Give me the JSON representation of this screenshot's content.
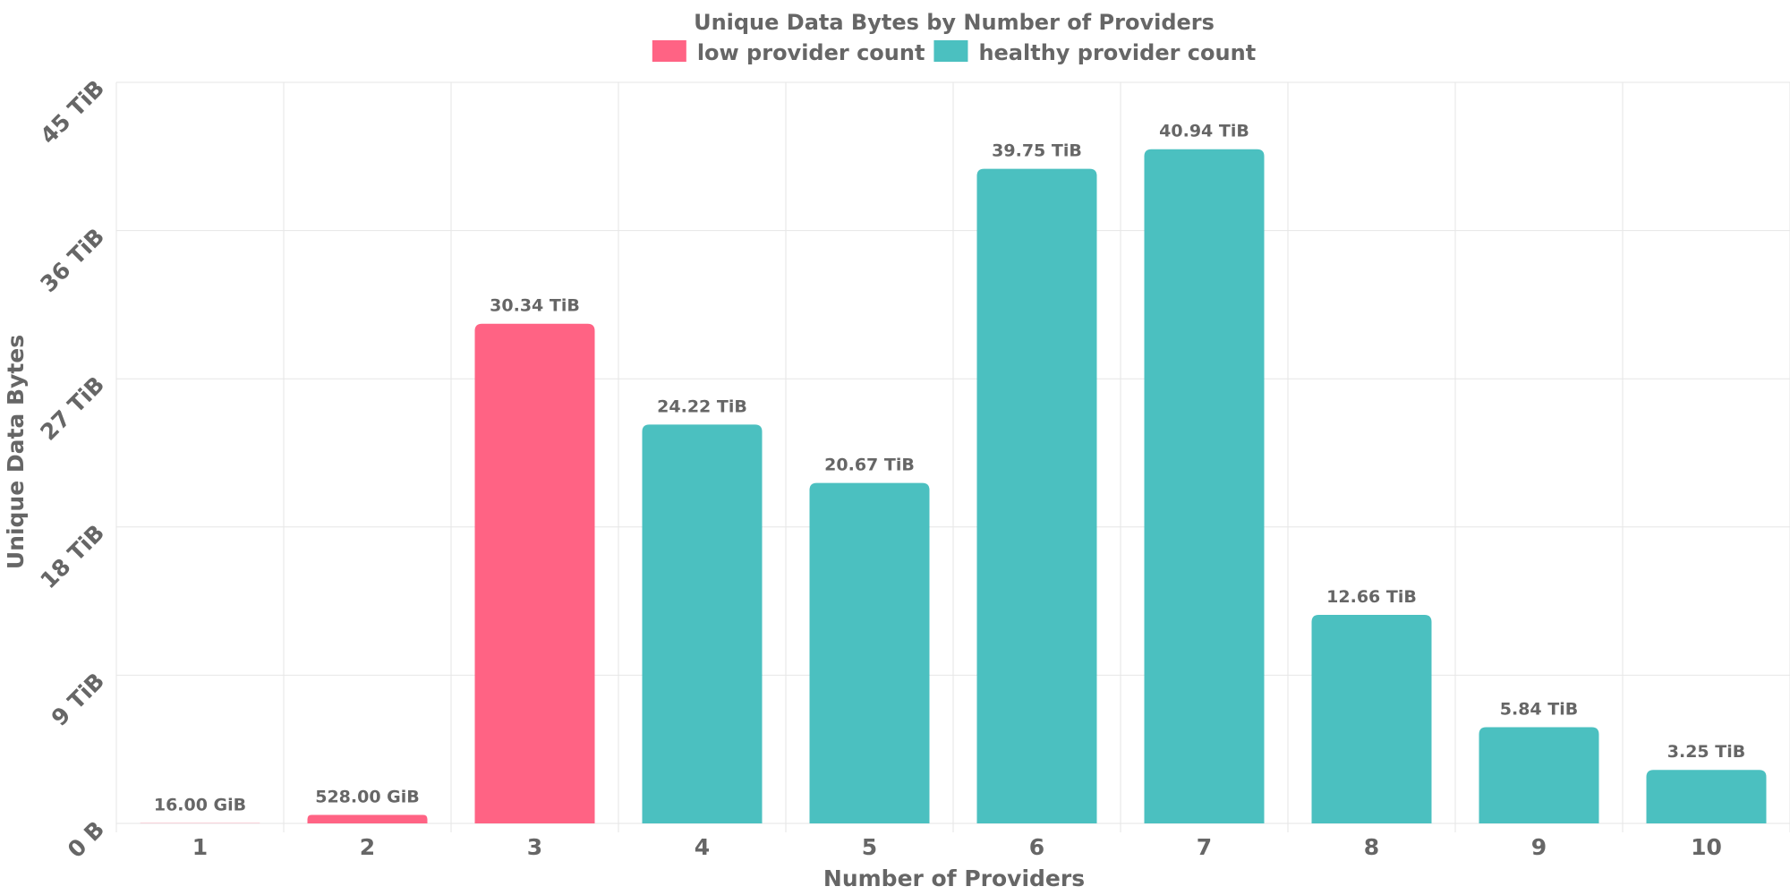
{
  "chart_data": {
    "type": "bar",
    "title": "Unique Data Bytes by Number of Providers",
    "xlabel": "Number of Providers",
    "ylabel": "Unique Data Bytes",
    "unit": "TiB",
    "ylim": [
      0,
      45
    ],
    "yticks": [
      0,
      9,
      18,
      27,
      36,
      45
    ],
    "ytick_labels": [
      "0 B",
      "9 TiB",
      "18 TiB",
      "27 TiB",
      "36 TiB",
      "45 TiB"
    ],
    "grid": true,
    "legend_position": "top-center",
    "categories": [
      "1",
      "2",
      "3",
      "4",
      "5",
      "6",
      "7",
      "8",
      "9",
      "10"
    ],
    "values": [
      0.015625,
      0.515625,
      30.34,
      24.22,
      20.67,
      39.75,
      40.94,
      12.66,
      5.84,
      3.25
    ],
    "value_labels": [
      "16.00 GiB",
      "528.00 GiB",
      "30.34 TiB",
      "24.22 TiB",
      "20.67 TiB",
      "39.75 TiB",
      "40.94 TiB",
      "12.66 TiB",
      "5.84 TiB",
      "3.25 TiB"
    ],
    "groups": [
      "low",
      "low",
      "low",
      "healthy",
      "healthy",
      "healthy",
      "healthy",
      "healthy",
      "healthy",
      "healthy"
    ],
    "series": [
      {
        "key": "low",
        "name": "low provider count",
        "color": "#ff6384"
      },
      {
        "key": "healthy",
        "name": "healthy provider count",
        "color": "#4bc0c0"
      }
    ]
  }
}
